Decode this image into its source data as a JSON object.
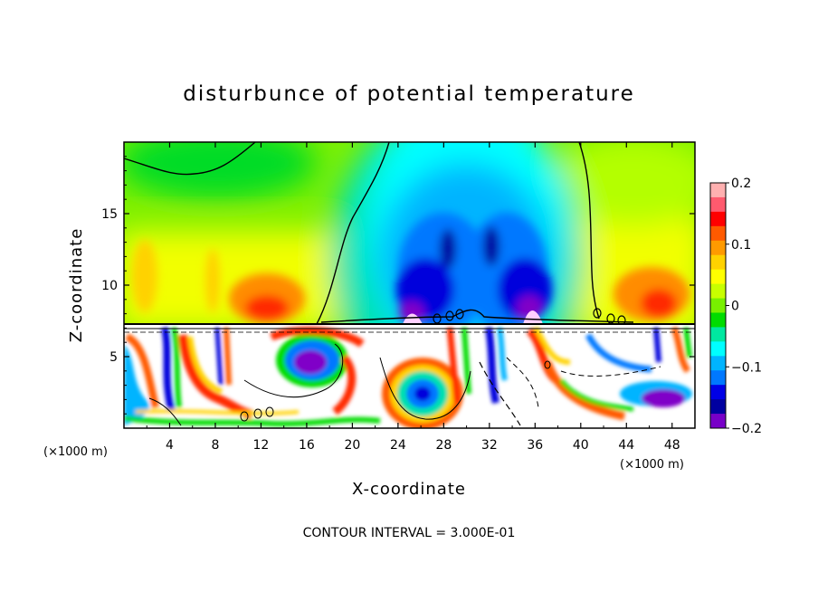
{
  "chart_data": {
    "type": "heatmap",
    "title": "disturbunce of potential temperature",
    "xlabel": "X-coordinate",
    "ylabel": "Z-coordinate",
    "x_unit": "(×1000 m)",
    "y_unit": "(×1000 m)",
    "xlim": [
      0,
      50
    ],
    "ylim": [
      0,
      20
    ],
    "x_ticks": [
      4,
      8,
      12,
      16,
      20,
      24,
      28,
      32,
      36,
      40,
      44,
      48
    ],
    "y_ticks": [
      5,
      10,
      15
    ],
    "grid": false,
    "colorbar": {
      "min": -0.2,
      "max": 0.2,
      "tick_values": [
        0.2,
        0.1,
        0,
        -0.1,
        -0.2
      ],
      "tick_labels": [
        "0.2",
        "0.1",
        "0",
        "−0.1",
        "−0.2"
      ],
      "colors": [
        "#ffb0b0",
        "#ff5a6e",
        "#ff0000",
        "#ff5a00",
        "#ff9a00",
        "#ffd200",
        "#ffff00",
        "#c8ff00",
        "#78f000",
        "#00dc00",
        "#00e8a0",
        "#00ffff",
        "#00b4ff",
        "#0078ff",
        "#0000e6",
        "#0000a0",
        "#7800c8"
      ]
    },
    "boundary_height": 7.2,
    "contour_interval_label": "CONTOUR INTERVAL = 3.000E-01",
    "features": [
      {
        "x": 26,
        "z": 12,
        "value": -0.13
      },
      {
        "x": 30,
        "z": 14,
        "value": -0.15
      },
      {
        "x": 34,
        "z": 12,
        "value": -0.13
      },
      {
        "x": 13,
        "z": 9.5,
        "value": 0.11
      },
      {
        "x": 45,
        "z": 9.5,
        "value": 0.11
      },
      {
        "x": 26,
        "z": 2.5,
        "value": -0.16
      }
    ]
  }
}
